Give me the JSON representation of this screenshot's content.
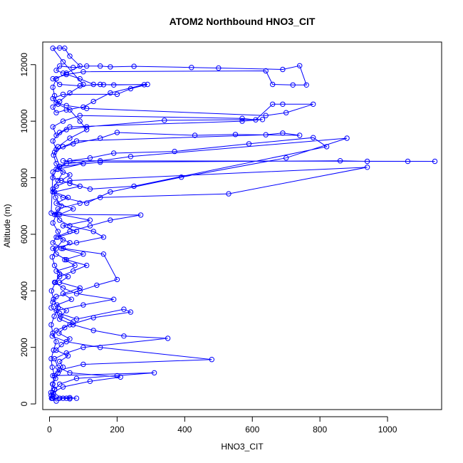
{
  "chart_data": {
    "type": "line",
    "title": "ATOM2 Northbound HNO3_CIT",
    "xlabel": "HNO3_CIT",
    "ylabel": "Altitude (m)",
    "xlim": [
      -20,
      1160
    ],
    "ylim": [
      -200,
      12800
    ],
    "x_ticks": [
      0,
      200,
      400,
      600,
      800,
      1000
    ],
    "y_ticks": [
      0,
      2000,
      4000,
      6000,
      8000,
      10000,
      12000
    ],
    "grid": false,
    "legend": "none",
    "series": [
      {
        "color": "#0000ff",
        "marker": "open-circle",
        "points": [
          [
            8,
            200
          ],
          [
            12,
            350
          ],
          [
            15,
            520
          ],
          [
            10,
            700
          ],
          [
            18,
            900
          ],
          [
            25,
            1100
          ],
          [
            40,
            1300
          ],
          [
            30,
            1500
          ],
          [
            55,
            1700
          ],
          [
            20,
            1900
          ],
          [
            35,
            2100
          ],
          [
            60,
            2300
          ],
          [
            28,
            2500
          ],
          [
            45,
            2700
          ],
          [
            70,
            2900
          ],
          [
            33,
            3100
          ],
          [
            50,
            3300
          ],
          [
            22,
            3500
          ],
          [
            65,
            3700
          ],
          [
            40,
            3900
          ],
          [
            90,
            4100
          ],
          [
            30,
            4300
          ],
          [
            55,
            4500
          ],
          [
            20,
            4700
          ],
          [
            75,
            4900
          ],
          [
            45,
            5100
          ],
          [
            100,
            5300
          ],
          [
            35,
            5500
          ],
          [
            60,
            5700
          ],
          [
            25,
            5900
          ],
          [
            80,
            6100
          ],
          [
            40,
            6300
          ],
          [
            120,
            6500
          ],
          [
            30,
            6700
          ],
          [
            70,
            6900
          ],
          [
            20,
            7100
          ],
          [
            55,
            7300
          ],
          [
            15,
            7500
          ],
          [
            90,
            7700
          ],
          [
            35,
            7900
          ],
          [
            60,
            8100
          ],
          [
            25,
            8300
          ],
          [
            100,
            8500
          ],
          [
            40,
            8600
          ],
          [
            1140,
            8580
          ],
          [
            1060,
            8580
          ],
          [
            940,
            8580
          ],
          [
            860,
            8600
          ],
          [
            150,
            8550
          ],
          [
            30,
            8400
          ],
          [
            10,
            8200
          ],
          [
            5,
            6750
          ],
          [
            25,
            6700
          ],
          [
            270,
            6680
          ],
          [
            180,
            6500
          ],
          [
            120,
            6300
          ],
          [
            60,
            6100
          ],
          [
            20,
            5900
          ],
          [
            10,
            5700
          ],
          [
            40,
            5500
          ],
          [
            160,
            5300
          ],
          [
            200,
            4400
          ],
          [
            140,
            4200
          ],
          [
            90,
            4000
          ],
          [
            20,
            3800
          ],
          [
            10,
            3600
          ],
          [
            5,
            3400
          ],
          [
            30,
            3200
          ],
          [
            80,
            3000
          ],
          [
            220,
            3350
          ],
          [
            240,
            3250
          ],
          [
            130,
            3050
          ],
          [
            60,
            2800
          ],
          [
            20,
            2600
          ],
          [
            8,
            2400
          ],
          [
            50,
            2200
          ],
          [
            150,
            2000
          ],
          [
            480,
            1570
          ],
          [
            100,
            1400
          ],
          [
            30,
            1200
          ],
          [
            10,
            1000
          ],
          [
            310,
            1100
          ],
          [
            200,
            1000
          ],
          [
            80,
            900
          ],
          [
            30,
            700
          ],
          [
            15,
            500
          ],
          [
            5,
            300
          ],
          [
            10,
            200
          ],
          [
            30,
            200
          ],
          [
            50,
            200
          ],
          [
            80,
            200
          ],
          [
            60,
            220
          ],
          [
            20,
            240
          ],
          [
            10,
            400
          ],
          [
            40,
            600
          ],
          [
            120,
            800
          ],
          [
            210,
            950
          ],
          [
            60,
            1100
          ],
          [
            25,
            1300
          ],
          [
            15,
            1600
          ],
          [
            50,
            1800
          ],
          [
            100,
            2000
          ],
          [
            350,
            2320
          ],
          [
            220,
            2400
          ],
          [
            130,
            2600
          ],
          [
            70,
            2800
          ],
          [
            30,
            3000
          ],
          [
            20,
            3300
          ],
          [
            100,
            3500
          ],
          [
            190,
            3700
          ],
          [
            80,
            3900
          ],
          [
            40,
            4100
          ],
          [
            15,
            4300
          ],
          [
            30,
            4500
          ],
          [
            70,
            4700
          ],
          [
            110,
            4900
          ],
          [
            50,
            5100
          ],
          [
            20,
            5300
          ],
          [
            10,
            5500
          ],
          [
            80,
            5700
          ],
          [
            160,
            5900
          ],
          [
            130,
            6100
          ],
          [
            60,
            6300
          ],
          [
            30,
            6500
          ],
          [
            15,
            6700
          ],
          [
            25,
            6900
          ],
          [
            90,
            7100
          ],
          [
            150,
            7300
          ],
          [
            530,
            7430
          ],
          [
            940,
            8370
          ],
          [
            60,
            7900
          ],
          [
            20,
            7700
          ],
          [
            10,
            7500
          ],
          [
            40,
            7300
          ],
          [
            110,
            7100
          ],
          [
            180,
            7500
          ],
          [
            390,
            8020
          ],
          [
            700,
            8700
          ],
          [
            880,
            9400
          ],
          [
            240,
            8750
          ],
          [
            150,
            8600
          ],
          [
            50,
            8500
          ],
          [
            20,
            8300
          ],
          [
            10,
            8000
          ],
          [
            60,
            7800
          ],
          [
            120,
            7600
          ],
          [
            250,
            7700
          ],
          [
            820,
            9100
          ],
          [
            780,
            9420
          ],
          [
            590,
            9200
          ],
          [
            370,
            8930
          ],
          [
            190,
            8870
          ],
          [
            120,
            8700
          ],
          [
            60,
            8600
          ],
          [
            30,
            8400
          ],
          [
            15,
            8900
          ],
          [
            40,
            9100
          ],
          [
            80,
            9300
          ],
          [
            640,
            9520
          ],
          [
            690,
            9580
          ],
          [
            740,
            9500
          ],
          [
            550,
            9530
          ],
          [
            430,
            9500
          ],
          [
            200,
            9600
          ],
          [
            150,
            9400
          ],
          [
            70,
            9200
          ],
          [
            20,
            9000
          ],
          [
            10,
            9300
          ],
          [
            30,
            9600
          ],
          [
            60,
            9800
          ],
          [
            570,
            10000
          ],
          [
            630,
            10060
          ],
          [
            340,
            10030
          ],
          [
            110,
            9800
          ],
          [
            50,
            9700
          ],
          [
            20,
            9500
          ],
          [
            10,
            9800
          ],
          [
            40,
            10000
          ],
          [
            90,
            10200
          ],
          [
            570,
            10100
          ],
          [
            610,
            10050
          ],
          [
            660,
            10600
          ],
          [
            690,
            10600
          ],
          [
            780,
            10600
          ],
          [
            700,
            10300
          ],
          [
            640,
            10200
          ],
          [
            110,
            10450
          ],
          [
            50,
            10550
          ],
          [
            20,
            10650
          ],
          [
            10,
            10800
          ],
          [
            40,
            10950
          ],
          [
            200,
            10950
          ],
          [
            240,
            11150
          ],
          [
            290,
            11300
          ],
          [
            190,
            11280
          ],
          [
            150,
            11300
          ],
          [
            90,
            11250
          ],
          [
            30,
            11300
          ],
          [
            10,
            11500
          ],
          [
            50,
            11650
          ],
          [
            100,
            11750
          ],
          [
            640,
            11780
          ],
          [
            660,
            11300
          ],
          [
            720,
            11280
          ],
          [
            760,
            11280
          ],
          [
            740,
            11960
          ],
          [
            690,
            11830
          ],
          [
            500,
            11880
          ],
          [
            420,
            11900
          ],
          [
            250,
            11940
          ],
          [
            180,
            11920
          ],
          [
            150,
            11950
          ],
          [
            110,
            11950
          ],
          [
            70,
            11900
          ],
          [
            30,
            11950
          ],
          [
            20,
            11800
          ],
          [
            40,
            11700
          ],
          [
            90,
            11500
          ],
          [
            130,
            11300
          ],
          [
            160,
            11290
          ],
          [
            280,
            11290
          ],
          [
            180,
            11000
          ],
          [
            130,
            10700
          ],
          [
            100,
            10500
          ],
          [
            50,
            10400
          ],
          [
            20,
            10300
          ],
          [
            10,
            10500
          ],
          [
            30,
            10700
          ],
          [
            60,
            11000
          ],
          [
            100,
            11300
          ],
          [
            40,
            12100
          ],
          [
            10,
            12580
          ],
          [
            30,
            12590
          ],
          [
            45,
            12580
          ],
          [
            60,
            12300
          ],
          [
            90,
            11950
          ],
          [
            50,
            11700
          ],
          [
            20,
            11500
          ],
          [
            10,
            11200
          ],
          [
            15,
            10900
          ],
          [
            25,
            10600
          ],
          [
            60,
            10400
          ],
          [
            90,
            10000
          ],
          [
            110,
            9700
          ],
          [
            60,
            9400
          ],
          [
            25,
            9100
          ],
          [
            12,
            8800
          ],
          [
            20,
            8500
          ],
          [
            40,
            8200
          ],
          [
            25,
            7900
          ],
          [
            10,
            7600
          ],
          [
            18,
            7300
          ],
          [
            35,
            7000
          ],
          [
            20,
            6700
          ],
          [
            10,
            6400
          ],
          [
            25,
            6100
          ],
          [
            40,
            5800
          ],
          [
            20,
            5500
          ],
          [
            8,
            5200
          ],
          [
            15,
            4900
          ],
          [
            30,
            4600
          ],
          [
            18,
            4300
          ],
          [
            6,
            4000
          ],
          [
            12,
            3700
          ],
          [
            25,
            3400
          ],
          [
            14,
            3100
          ],
          [
            5,
            2800
          ],
          [
            10,
            2500
          ],
          [
            20,
            2200
          ],
          [
            12,
            1900
          ],
          [
            5,
            1600
          ],
          [
            8,
            1300
          ],
          [
            15,
            1000
          ],
          [
            9,
            700
          ],
          [
            4,
            400
          ],
          [
            6,
            200
          ],
          [
            20,
            100
          ],
          [
            40,
            200
          ],
          [
            60,
            180
          ]
        ]
      }
    ]
  }
}
